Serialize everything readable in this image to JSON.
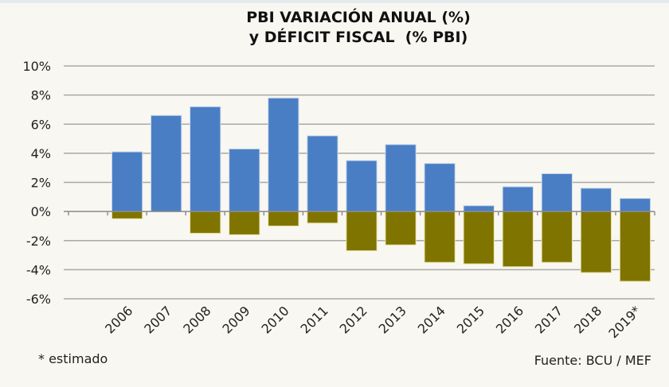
{
  "chart_data": {
    "type": "bar",
    "title": [
      "PBI VARIACIÓN ANUAL (%)",
      "y DÉFICIT FISCAL  (% PBI)"
    ],
    "xlabel": "",
    "ylabel": "",
    "categories": [
      "",
      "2006",
      "2007",
      "2008",
      "2009",
      "2010",
      "2011",
      "2012",
      "2013",
      "2014",
      "2015",
      "2016",
      "2017",
      "2018",
      "2019*"
    ],
    "series": [
      {
        "name": "PBI variación anual (%)",
        "color": "#4a7ec4",
        "values": [
          null,
          4.1,
          6.6,
          7.2,
          4.3,
          7.8,
          5.2,
          3.5,
          4.6,
          3.3,
          0.4,
          1.7,
          2.6,
          1.6,
          0.9
        ]
      },
      {
        "name": "Déficit fiscal (% PBI)",
        "color": "#807400",
        "values": [
          null,
          -0.5,
          0,
          -1.5,
          -1.6,
          -1.0,
          -0.8,
          -2.7,
          -2.3,
          -3.5,
          -3.6,
          -3.8,
          -3.5,
          -4.2,
          -4.8
        ]
      }
    ],
    "ylim": [
      -6,
      10
    ],
    "yticks": [
      10,
      8,
      6,
      4,
      2,
      0,
      -2,
      -4,
      -6
    ],
    "ytick_labels": [
      "10%",
      "8%",
      "6%",
      "4%",
      "2%",
      "0%",
      "-2%",
      "-4%",
      "-6%"
    ],
    "grid": true,
    "legend": "none",
    "stacked": true,
    "annotations": {
      "footnote": "* estimado",
      "source": "Fuente: BCU / MEF"
    }
  }
}
